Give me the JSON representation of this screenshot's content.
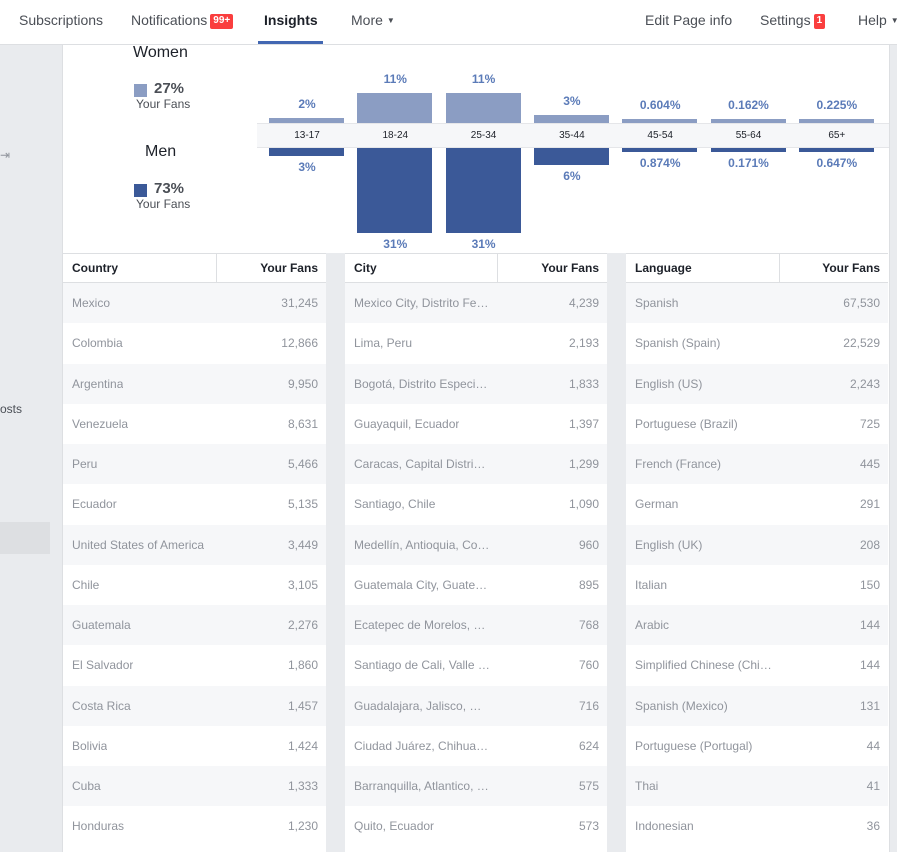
{
  "nav": {
    "subscriptions": "Subscriptions",
    "notifications": "Notifications",
    "notifications_badge": "99+",
    "insights": "Insights",
    "more": "More",
    "edit_page_info": "Edit Page info",
    "settings": "Settings",
    "settings_badge": "1",
    "help": "Help"
  },
  "sidebar": {
    "partial_label": "osts"
  },
  "gender": {
    "women": {
      "label": "Women",
      "pct": "27%",
      "sub": "Your Fans",
      "color": "#8b9dc3"
    },
    "men": {
      "label": "Men",
      "pct": "73%",
      "sub": "Your Fans",
      "color": "#3b5998"
    }
  },
  "chart_data": {
    "type": "bar",
    "categories": [
      "13-17",
      "18-24",
      "25-34",
      "35-44",
      "45-54",
      "55-64",
      "65+"
    ],
    "series": [
      {
        "name": "Women",
        "values": [
          2,
          11,
          11,
          3,
          0.604,
          0.162,
          0.225
        ],
        "labels": [
          "2%",
          "11%",
          "11%",
          "3%",
          "0.604%",
          "0.162%",
          "0.225%"
        ]
      },
      {
        "name": "Men",
        "values": [
          3,
          31,
          31,
          6,
          0.874,
          0.171,
          0.647
        ],
        "labels": [
          "3%",
          "31%",
          "31%",
          "6%",
          "0.874%",
          "0.171%",
          "0.647%"
        ]
      }
    ],
    "colors": {
      "women": "#8b9dc3",
      "men": "#3b5998"
    }
  },
  "tables": [
    {
      "name": "country",
      "headers": [
        "Country",
        "Your Fans"
      ],
      "rows": [
        [
          "Mexico",
          "31,245"
        ],
        [
          "Colombia",
          "12,866"
        ],
        [
          "Argentina",
          "9,950"
        ],
        [
          "Venezuela",
          "8,631"
        ],
        [
          "Peru",
          "5,466"
        ],
        [
          "Ecuador",
          "5,135"
        ],
        [
          "United States of America",
          "3,449"
        ],
        [
          "Chile",
          "3,105"
        ],
        [
          "Guatemala",
          "2,276"
        ],
        [
          "El Salvador",
          "1,860"
        ],
        [
          "Costa Rica",
          "1,457"
        ],
        [
          "Bolivia",
          "1,424"
        ],
        [
          "Cuba",
          "1,333"
        ],
        [
          "Honduras",
          "1,230"
        ]
      ]
    },
    {
      "name": "city",
      "headers": [
        "City",
        "Your Fans"
      ],
      "rows": [
        [
          "Mexico City, Distrito Fe…",
          "4,239"
        ],
        [
          "Lima, Peru",
          "2,193"
        ],
        [
          "Bogotá, Distrito Especi…",
          "1,833"
        ],
        [
          "Guayaquil, Ecuador",
          "1,397"
        ],
        [
          "Caracas, Capital Distri…",
          "1,299"
        ],
        [
          "Santiago, Chile",
          "1,090"
        ],
        [
          "Medellín, Antioquia, Co…",
          "960"
        ],
        [
          "Guatemala City, Guate…",
          "895"
        ],
        [
          "Ecatepec de Morelos, …",
          "768"
        ],
        [
          "Santiago de Cali, Valle …",
          "760"
        ],
        [
          "Guadalajara, Jalisco, …",
          "716"
        ],
        [
          "Ciudad Juárez, Chihua…",
          "624"
        ],
        [
          "Barranquilla, Atlantico, …",
          "575"
        ],
        [
          "Quito, Ecuador",
          "573"
        ]
      ]
    },
    {
      "name": "language",
      "headers": [
        "Language",
        "Your Fans"
      ],
      "rows": [
        [
          "Spanish",
          "67,530"
        ],
        [
          "Spanish (Spain)",
          "22,529"
        ],
        [
          "English (US)",
          "2,243"
        ],
        [
          "Portuguese (Brazil)",
          "725"
        ],
        [
          "French (France)",
          "445"
        ],
        [
          "German",
          "291"
        ],
        [
          "English (UK)",
          "208"
        ],
        [
          "Italian",
          "150"
        ],
        [
          "Arabic",
          "144"
        ],
        [
          "Simplified Chinese (Chi…",
          "144"
        ],
        [
          "Spanish (Mexico)",
          "131"
        ],
        [
          "Portuguese (Portugal)",
          "44"
        ],
        [
          "Thai",
          "41"
        ],
        [
          "Indonesian",
          "36"
        ]
      ]
    }
  ]
}
